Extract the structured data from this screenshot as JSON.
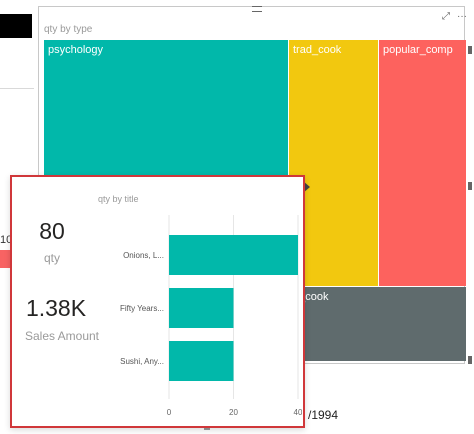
{
  "left_panel": {
    "partial_value": "10"
  },
  "treemap": {
    "title": "qty by type",
    "cells": [
      {
        "label": "psychology",
        "color": "#01b8aa"
      },
      {
        "label": "trad_cook",
        "color": "#f2c80f"
      },
      {
        "label": "popular_comp",
        "color": "#fd625e"
      },
      {
        "label": "d_cook",
        "color": "#5f6b6d"
      }
    ]
  },
  "visual_header": {
    "focus_icon": "focus-mode-icon",
    "more_icon": "more-options-icon"
  },
  "tooltip": {
    "metrics": [
      {
        "value": "80",
        "label": "qty"
      },
      {
        "value": "1.38K",
        "label": "Sales Amount"
      }
    ],
    "bar_chart_title": "qty by title"
  },
  "chart_data": {
    "type": "bar",
    "orientation": "horizontal",
    "title": "qty by title",
    "categories": [
      "Onions, L...",
      "Fifty Years...",
      "Sushi, Any..."
    ],
    "values": [
      40,
      20,
      20
    ],
    "xlim": [
      0,
      40
    ],
    "xticks": [
      "0",
      "20",
      "40"
    ],
    "color": "#01b8aa",
    "grid": true
  },
  "background_fragment": {
    "year_text": "/1994"
  }
}
